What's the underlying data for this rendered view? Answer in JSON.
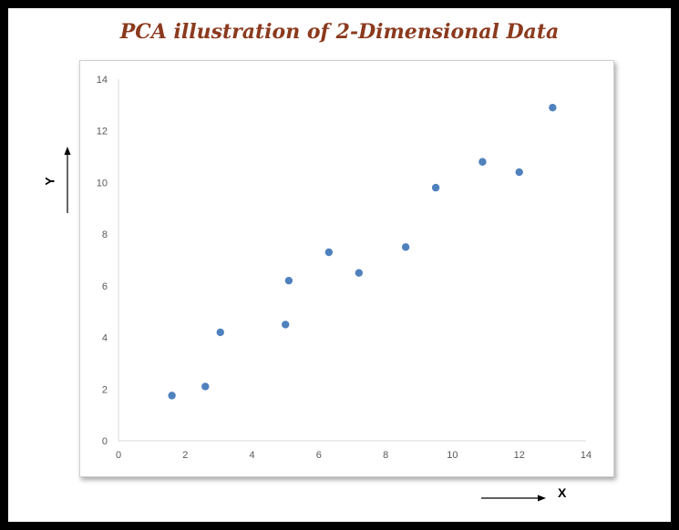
{
  "chart_data": {
    "type": "scatter",
    "title": "PCA illustration of 2-Dimensional Data",
    "xlabel": "X",
    "ylabel": "Y",
    "xlim": [
      0,
      14
    ],
    "ylim": [
      0,
      14
    ],
    "xticks": [
      "0",
      "2",
      "4",
      "6",
      "8",
      "10",
      "12",
      "14"
    ],
    "yticks": [
      "0",
      "2",
      "4",
      "6",
      "8",
      "10",
      "12",
      "14"
    ],
    "grid": false,
    "marker_color": "#4F81BD",
    "points": [
      {
        "x": 1.6,
        "y": 1.75
      },
      {
        "x": 2.6,
        "y": 2.1
      },
      {
        "x": 3.05,
        "y": 4.2
      },
      {
        "x": 5.0,
        "y": 4.5
      },
      {
        "x": 5.1,
        "y": 6.2
      },
      {
        "x": 6.3,
        "y": 7.3
      },
      {
        "x": 7.2,
        "y": 6.5
      },
      {
        "x": 8.6,
        "y": 7.5
      },
      {
        "x": 9.5,
        "y": 9.8
      },
      {
        "x": 10.9,
        "y": 10.8
      },
      {
        "x": 12.0,
        "y": 10.4
      },
      {
        "x": 13.0,
        "y": 12.9
      }
    ]
  }
}
